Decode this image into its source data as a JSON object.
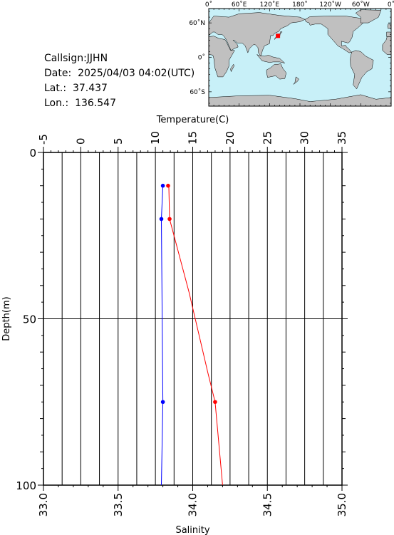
{
  "info": {
    "callsign_label": "Callsign:",
    "callsign": "JJHN",
    "date_label": "Date:",
    "date": "2025/04/03 04:02(UTC)",
    "lat_label": "Lat.:",
    "lat": "37.437",
    "lon_label": "Lon.:",
    "lon": "136.547"
  },
  "map": {
    "lon_labels": [
      "0˚",
      "60˚E",
      "120˚E",
      "180˚",
      "120˚W",
      "60˚W",
      "0˚"
    ],
    "lat_labels": [
      "60˚N",
      "0˚",
      "60˚S"
    ],
    "station": {
      "lat": 37.437,
      "lon": 136.547
    },
    "land_color": "#c0c0c0",
    "ocean_color": "#c8f0f8",
    "station_color": "#ff0000"
  },
  "chart_data": {
    "type": "line",
    "title": "",
    "temperature_axis": {
      "label": "Temperature(C)",
      "range": [
        -5,
        35
      ],
      "ticks": [
        -5,
        0,
        5,
        10,
        15,
        20,
        25,
        30,
        35
      ]
    },
    "salinity_axis": {
      "label": "Salinity",
      "range": [
        33.0,
        35.0
      ],
      "ticks": [
        "33.0",
        "33.5",
        "34.0",
        "34.5",
        "35.0"
      ]
    },
    "depth_axis": {
      "label": "Depth(m)",
      "range": [
        0,
        100
      ],
      "ticks": [
        0,
        50,
        100
      ],
      "inverted": true
    },
    "grid": true,
    "series": [
      {
        "axis": "temperature",
        "color": "#ff0000",
        "marker_depths": [
          10,
          20,
          75
        ],
        "depth": [
          10,
          10.5,
          20,
          42,
          66,
          75,
          100
        ],
        "values": [
          11.7,
          11.8,
          11.9,
          14.5,
          17.0,
          18.0,
          19.0
        ]
      },
      {
        "axis": "salinity",
        "color": "#0000ff",
        "marker_depths": [
          10,
          20,
          75
        ],
        "depth": [
          10,
          20,
          75,
          100
        ],
        "values": [
          33.8,
          33.79,
          33.8,
          33.79
        ]
      }
    ]
  }
}
